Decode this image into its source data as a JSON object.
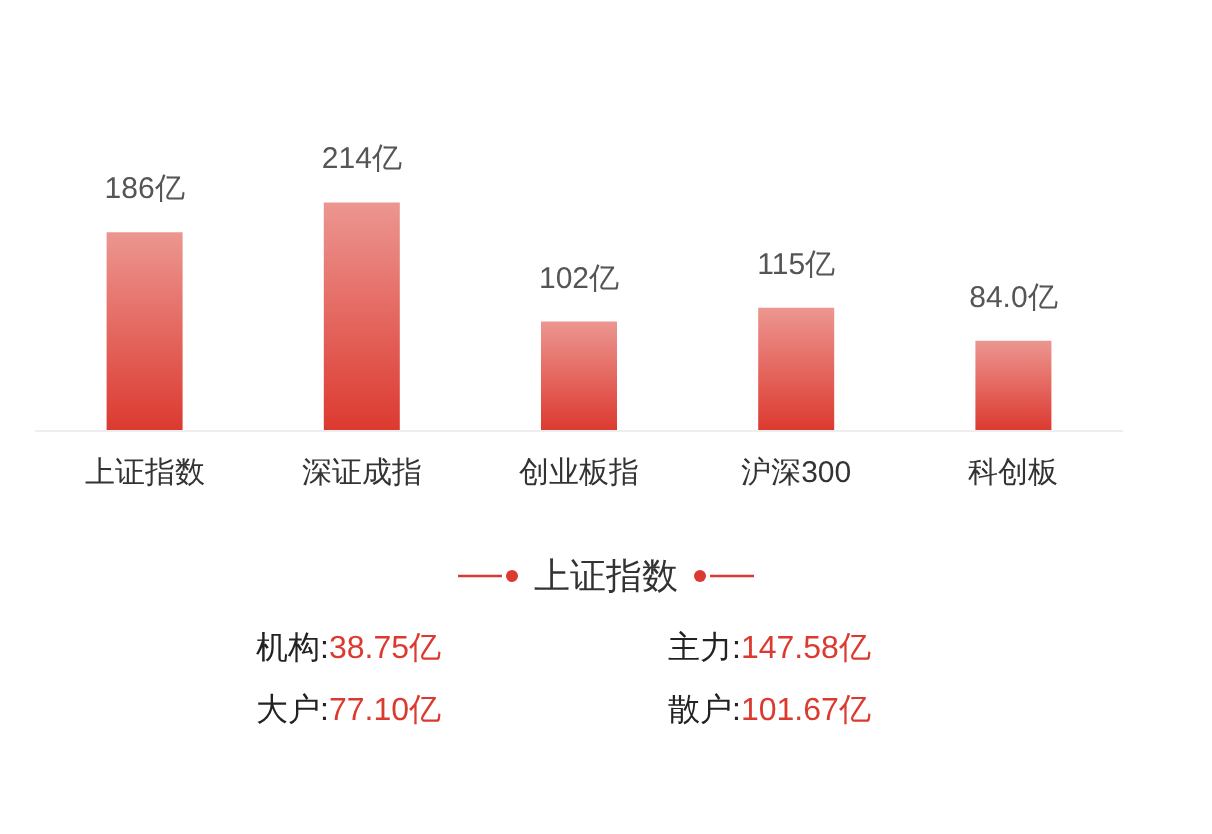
{
  "chart_data": [
    {
      "type": "bar",
      "categories": [
        "上证指数",
        "深证成指",
        "创业板指",
        "沪深300",
        "科创板"
      ],
      "values": [
        186,
        214,
        102,
        115,
        84.0
      ],
      "value_labels": [
        "186亿",
        "214亿",
        "102亿",
        "115亿",
        "84.0亿"
      ],
      "color": "#dc3a30"
    },
    {
      "type": "other",
      "title": "上证指数",
      "annotations": [
        "机构:38.75亿",
        "主力:147.58亿",
        "大户:77.10亿",
        "散户:101.67亿"
      ],
      "color": "#dc3a30"
    }
  ]
}
